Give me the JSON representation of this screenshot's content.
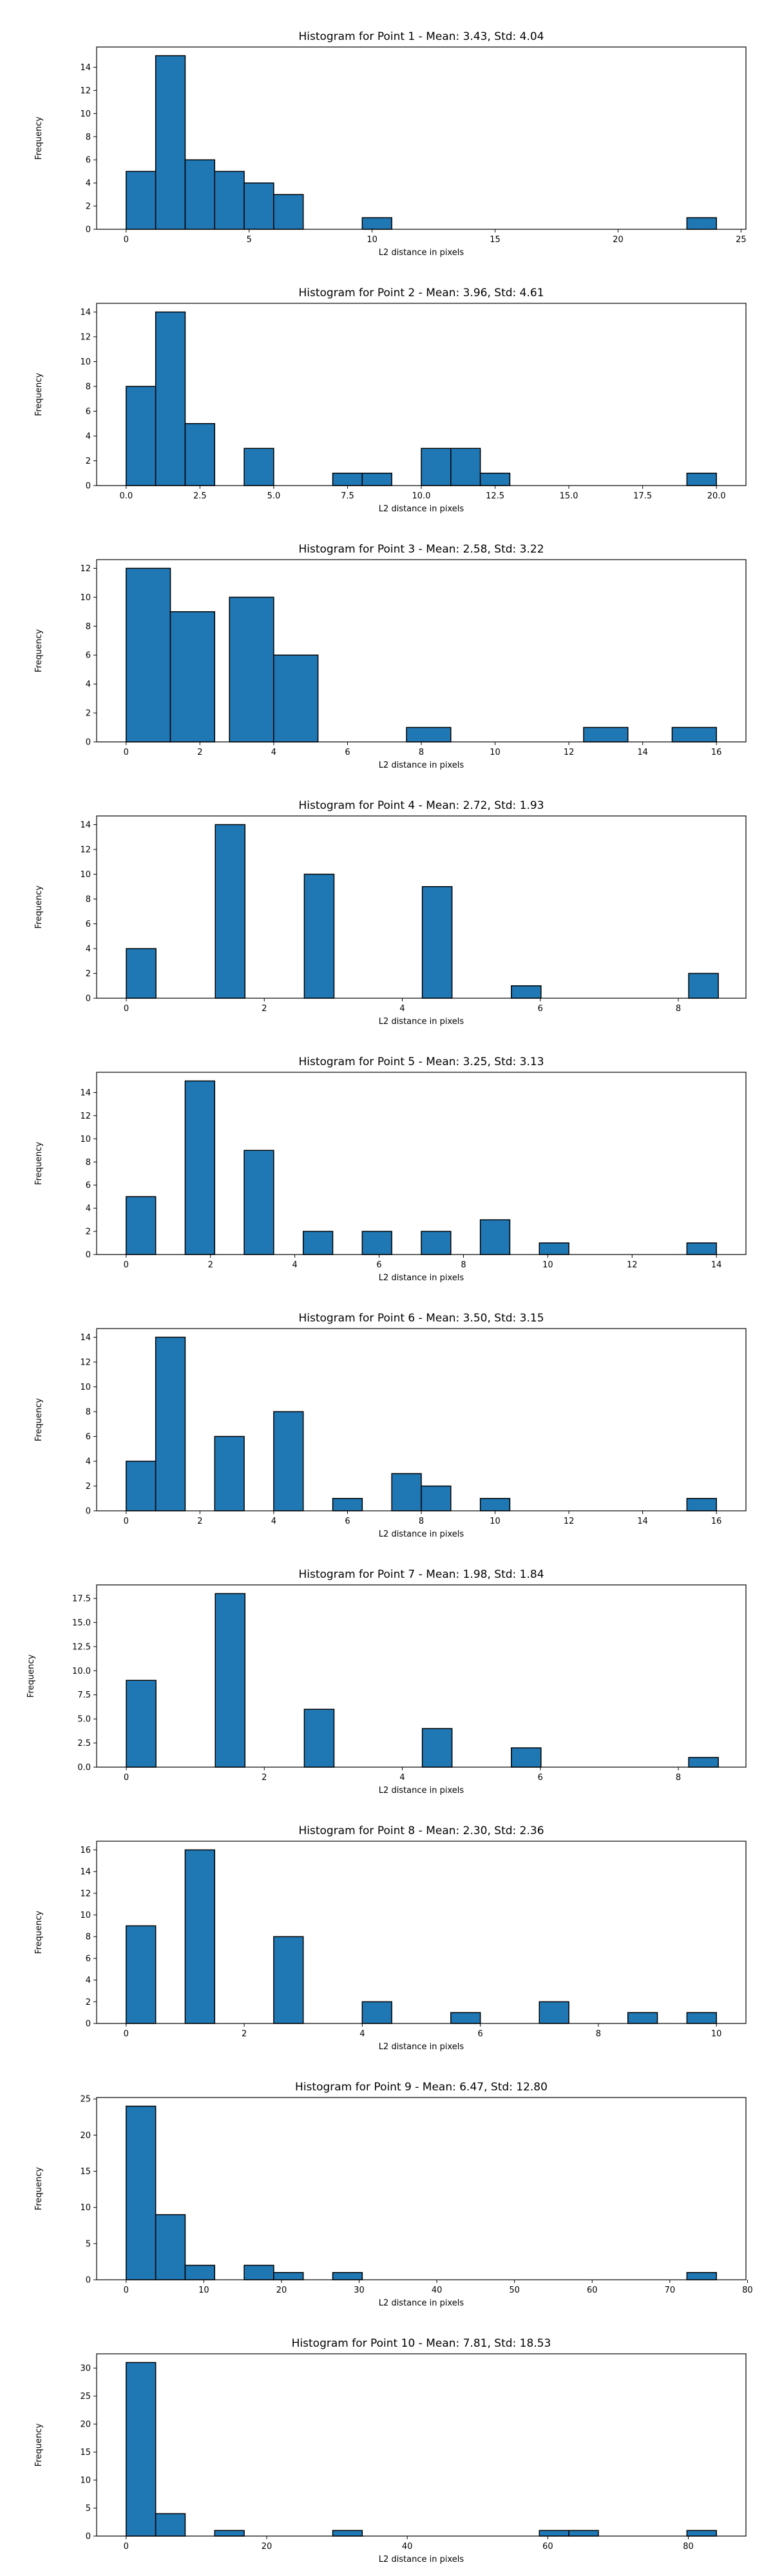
{
  "chart_data": [
    {
      "type": "bar",
      "title": "Histogram for Point 1 - Mean: 3.43, Std: 4.04",
      "xlabel": "L2 distance in pixels",
      "ylabel": "Frequency",
      "xlim": [
        -1.2,
        25.2
      ],
      "ylim": [
        0,
        15.75
      ],
      "xticks": [
        0,
        5,
        10,
        15,
        20,
        25
      ],
      "yticks": [
        0,
        2,
        4,
        6,
        8,
        10,
        12,
        14
      ],
      "bins": [
        {
          "x0": 0,
          "x1": 1.2,
          "count": 5
        },
        {
          "x0": 1.2,
          "x1": 2.4,
          "count": 15
        },
        {
          "x0": 2.4,
          "x1": 3.6,
          "count": 6
        },
        {
          "x0": 3.6,
          "x1": 4.8,
          "count": 5
        },
        {
          "x0": 4.8,
          "x1": 6.0,
          "count": 4
        },
        {
          "x0": 6.0,
          "x1": 7.2,
          "count": 3
        },
        {
          "x0": 9.6,
          "x1": 10.8,
          "count": 1
        },
        {
          "x0": 22.8,
          "x1": 24.0,
          "count": 1
        }
      ]
    },
    {
      "type": "bar",
      "title": "Histogram for Point 2 - Mean: 3.96, Std: 4.61",
      "xlabel": "L2 distance in pixels",
      "ylabel": "Frequency",
      "xlim": [
        -1.0,
        21.0
      ],
      "ylim": [
        0,
        14.7
      ],
      "xticks": [
        0.0,
        2.5,
        5.0,
        7.5,
        10.0,
        12.5,
        15.0,
        17.5,
        20.0
      ],
      "xtick_labels": [
        "0.0",
        "2.5",
        "5.0",
        "7.5",
        "10.0",
        "12.5",
        "15.0",
        "17.5",
        "20.0"
      ],
      "yticks": [
        0,
        2,
        4,
        6,
        8,
        10,
        12,
        14
      ],
      "bins": [
        {
          "x0": 0,
          "x1": 1,
          "count": 8
        },
        {
          "x0": 1,
          "x1": 2,
          "count": 14
        },
        {
          "x0": 2,
          "x1": 3,
          "count": 5
        },
        {
          "x0": 4,
          "x1": 5,
          "count": 3
        },
        {
          "x0": 7,
          "x1": 8,
          "count": 1
        },
        {
          "x0": 8,
          "x1": 9,
          "count": 1
        },
        {
          "x0": 10,
          "x1": 11,
          "count": 3
        },
        {
          "x0": 11,
          "x1": 12,
          "count": 3
        },
        {
          "x0": 12,
          "x1": 13,
          "count": 1
        },
        {
          "x0": 19,
          "x1": 20,
          "count": 1
        }
      ]
    },
    {
      "type": "bar",
      "title": "Histogram for Point 3 - Mean: 2.58, Std: 3.22",
      "xlabel": "L2 distance in pixels",
      "ylabel": "Frequency",
      "xlim": [
        -0.8,
        16.8
      ],
      "ylim": [
        0,
        12.6
      ],
      "xticks": [
        0,
        2,
        4,
        6,
        8,
        10,
        12,
        14,
        16
      ],
      "yticks": [
        0,
        2,
        4,
        6,
        8,
        10,
        12
      ],
      "bins": [
        {
          "x0": 0,
          "x1": 1.2,
          "count": 12
        },
        {
          "x0": 1.2,
          "x1": 2.4,
          "count": 9
        },
        {
          "x0": 2.8,
          "x1": 4.0,
          "count": 10
        },
        {
          "x0": 4.0,
          "x1": 5.2,
          "count": 6
        },
        {
          "x0": 7.6,
          "x1": 8.8,
          "count": 1
        },
        {
          "x0": 12.4,
          "x1": 13.6,
          "count": 1
        },
        {
          "x0": 14.8,
          "x1": 16.0,
          "count": 1
        }
      ]
    },
    {
      "type": "bar",
      "title": "Histogram for Point 4 - Mean: 2.72, Std: 1.93",
      "xlabel": "L2 distance in pixels",
      "ylabel": "Frequency",
      "xlim": [
        -0.43,
        8.98
      ],
      "ylim": [
        0,
        14.7
      ],
      "xticks": [
        0,
        2,
        4,
        6,
        8
      ],
      "yticks": [
        0,
        2,
        4,
        6,
        8,
        10,
        12,
        14
      ],
      "bins": [
        {
          "x0": 0,
          "x1": 0.43,
          "count": 4
        },
        {
          "x0": 1.29,
          "x1": 1.72,
          "count": 14
        },
        {
          "x0": 2.58,
          "x1": 3.01,
          "count": 10
        },
        {
          "x0": 4.29,
          "x1": 4.72,
          "count": 9
        },
        {
          "x0": 5.58,
          "x1": 6.01,
          "count": 1
        },
        {
          "x0": 8.15,
          "x1": 8.58,
          "count": 2
        }
      ]
    },
    {
      "type": "bar",
      "title": "Histogram for Point 5 - Mean: 3.25, Std: 3.13",
      "xlabel": "L2 distance in pixels",
      "ylabel": "Frequency",
      "xlim": [
        -0.7,
        14.7
      ],
      "ylim": [
        0,
        15.75
      ],
      "xticks": [
        0,
        2,
        4,
        6,
        8,
        10,
        12,
        14
      ],
      "yticks": [
        0,
        2,
        4,
        6,
        8,
        10,
        12,
        14
      ],
      "bins": [
        {
          "x0": 0,
          "x1": 0.7,
          "count": 5
        },
        {
          "x0": 1.4,
          "x1": 2.1,
          "count": 15
        },
        {
          "x0": 2.8,
          "x1": 3.5,
          "count": 9
        },
        {
          "x0": 4.2,
          "x1": 4.9,
          "count": 2
        },
        {
          "x0": 5.6,
          "x1": 6.3,
          "count": 2
        },
        {
          "x0": 7.0,
          "x1": 7.7,
          "count": 2
        },
        {
          "x0": 8.4,
          "x1": 9.1,
          "count": 3
        },
        {
          "x0": 9.8,
          "x1": 10.5,
          "count": 1
        },
        {
          "x0": 13.3,
          "x1": 14.0,
          "count": 1
        }
      ]
    },
    {
      "type": "bar",
      "title": "Histogram for Point 6 - Mean: 3.50, Std: 3.15",
      "xlabel": "L2 distance in pixels",
      "ylabel": "Frequency",
      "xlim": [
        -0.8,
        16.8
      ],
      "ylim": [
        0,
        14.7
      ],
      "xticks": [
        0,
        2,
        4,
        6,
        8,
        10,
        12,
        14,
        16
      ],
      "yticks": [
        0,
        2,
        4,
        6,
        8,
        10,
        12,
        14
      ],
      "bins": [
        {
          "x0": 0,
          "x1": 0.8,
          "count": 4
        },
        {
          "x0": 0.8,
          "x1": 1.6,
          "count": 14
        },
        {
          "x0": 2.4,
          "x1": 3.2,
          "count": 6
        },
        {
          "x0": 4.0,
          "x1": 4.8,
          "count": 8
        },
        {
          "x0": 5.6,
          "x1": 6.4,
          "count": 1
        },
        {
          "x0": 7.2,
          "x1": 8.0,
          "count": 3
        },
        {
          "x0": 8.0,
          "x1": 8.8,
          "count": 2
        },
        {
          "x0": 9.6,
          "x1": 10.4,
          "count": 1
        },
        {
          "x0": 15.2,
          "x1": 16.0,
          "count": 1
        }
      ]
    },
    {
      "type": "bar",
      "title": "Histogram for Point 7 - Mean: 1.98, Std: 1.84",
      "xlabel": "L2 distance in pixels",
      "ylabel": "Frequency",
      "xlim": [
        -0.43,
        8.98
      ],
      "ylim": [
        0,
        18.9
      ],
      "xticks": [
        0,
        2,
        4,
        6,
        8
      ],
      "yticks": [
        0.0,
        2.5,
        5.0,
        7.5,
        10.0,
        12.5,
        15.0,
        17.5
      ],
      "ytick_labels": [
        "0.0",
        "2.5",
        "5.0",
        "7.5",
        "10.0",
        "12.5",
        "15.0",
        "17.5"
      ],
      "bins": [
        {
          "x0": 0,
          "x1": 0.43,
          "count": 9
        },
        {
          "x0": 1.29,
          "x1": 1.72,
          "count": 18
        },
        {
          "x0": 2.58,
          "x1": 3.01,
          "count": 6
        },
        {
          "x0": 4.29,
          "x1": 4.72,
          "count": 4
        },
        {
          "x0": 5.58,
          "x1": 6.01,
          "count": 2
        },
        {
          "x0": 8.15,
          "x1": 8.58,
          "count": 1
        }
      ]
    },
    {
      "type": "bar",
      "title": "Histogram for Point 8 - Mean: 2.30, Std: 2.36",
      "xlabel": "L2 distance in pixels",
      "ylabel": "Frequency",
      "xlim": [
        -0.5,
        10.5
      ],
      "ylim": [
        0,
        16.8
      ],
      "xticks": [
        0,
        2,
        4,
        6,
        8,
        10
      ],
      "yticks": [
        0,
        2,
        4,
        6,
        8,
        10,
        12,
        14,
        16
      ],
      "bins": [
        {
          "x0": 0,
          "x1": 0.5,
          "count": 9
        },
        {
          "x0": 1.0,
          "x1": 1.5,
          "count": 16
        },
        {
          "x0": 2.5,
          "x1": 3.0,
          "count": 8
        },
        {
          "x0": 4.0,
          "x1": 4.5,
          "count": 2
        },
        {
          "x0": 5.5,
          "x1": 6.0,
          "count": 1
        },
        {
          "x0": 7.0,
          "x1": 7.5,
          "count": 2
        },
        {
          "x0": 8.5,
          "x1": 9.0,
          "count": 1
        },
        {
          "x0": 9.5,
          "x1": 10.0,
          "count": 1
        }
      ]
    },
    {
      "type": "bar",
      "title": "Histogram for Point 9 - Mean: 6.47, Std: 12.80",
      "xlabel": "L2 distance in pixels",
      "ylabel": "Frequency",
      "xlim": [
        -3.8,
        79.8
      ],
      "ylim": [
        0,
        25.2
      ],
      "xticks": [
        0,
        10,
        20,
        30,
        40,
        50,
        60,
        70,
        80
      ],
      "yticks": [
        0,
        5,
        10,
        15,
        20,
        25
      ],
      "bins": [
        {
          "x0": 0,
          "x1": 3.8,
          "count": 24
        },
        {
          "x0": 3.8,
          "x1": 7.6,
          "count": 9
        },
        {
          "x0": 7.6,
          "x1": 11.4,
          "count": 2
        },
        {
          "x0": 15.2,
          "x1": 19.0,
          "count": 2
        },
        {
          "x0": 19.0,
          "x1": 22.8,
          "count": 1
        },
        {
          "x0": 26.6,
          "x1": 30.4,
          "count": 1
        },
        {
          "x0": 72.2,
          "x1": 76.0,
          "count": 1
        }
      ]
    },
    {
      "type": "bar",
      "title": "Histogram for Point 10 - Mean: 7.81, Std: 18.53",
      "xlabel": "L2 distance in pixels",
      "ylabel": "Frequency",
      "xlim": [
        -4.2,
        88.2
      ],
      "ylim": [
        0,
        32.55
      ],
      "xticks": [
        0,
        20,
        40,
        60,
        80
      ],
      "yticks": [
        0,
        5,
        10,
        15,
        20,
        25,
        30
      ],
      "bins": [
        {
          "x0": 0,
          "x1": 4.2,
          "count": 31
        },
        {
          "x0": 4.2,
          "x1": 8.4,
          "count": 4
        },
        {
          "x0": 12.6,
          "x1": 16.8,
          "count": 1
        },
        {
          "x0": 29.4,
          "x1": 33.6,
          "count": 1
        },
        {
          "x0": 58.8,
          "x1": 63.0,
          "count": 1
        },
        {
          "x0": 63.0,
          "x1": 67.2,
          "count": 1
        },
        {
          "x0": 79.8,
          "x1": 84.0,
          "count": 1
        }
      ]
    }
  ],
  "style": {
    "bar_color": "#1f77b4",
    "edge_color": "#000000"
  }
}
